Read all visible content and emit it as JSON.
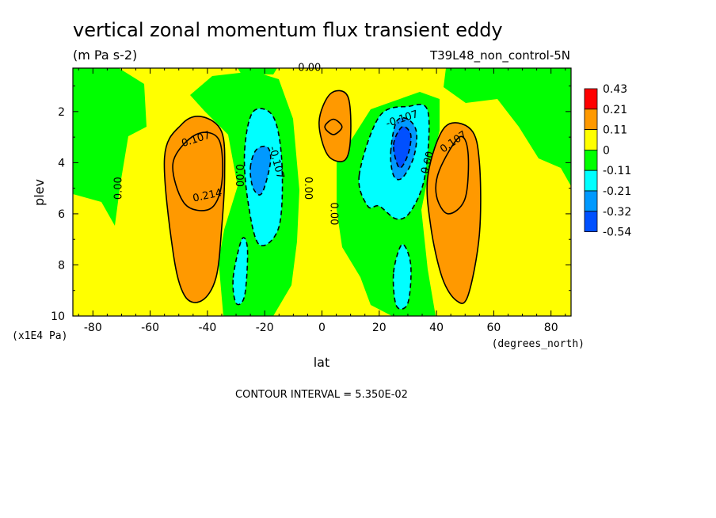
{
  "chart_data": {
    "type": "heatmap",
    "title": "vertical zonal momentum flux transient eddy",
    "units": "(m Pa s-2)",
    "dataset": "T39L48_non_control-5N",
    "xlabel": "lat",
    "xunits": "(degrees_north)",
    "ylabel": "plev",
    "yunits": "(x1E4 Pa)",
    "xlim": [
      -87,
      87
    ],
    "ylim": [
      10,
      0.3
    ],
    "x_ticks": [
      "-80",
      "-60",
      "-40",
      "-20",
      "0",
      "20",
      "40",
      "60",
      "80"
    ],
    "x_tick_values": [
      -80,
      -60,
      -40,
      -20,
      0,
      20,
      40,
      60,
      80
    ],
    "y_ticks": [
      "2",
      "4",
      "6",
      "8",
      "10"
    ],
    "y_tick_values": [
      2,
      4,
      6,
      8,
      10
    ],
    "contour_interval_text": "CONTOUR INTERVAL = 5.350E-02",
    "colorbar": {
      "labels": [
        "0.43",
        "0.21",
        "0.11",
        "0",
        "-0.11",
        "-0.21",
        "-0.32",
        "-0.54"
      ],
      "colors": [
        "#ff0000",
        "#ff9900",
        "#ffff00",
        "#00ff00",
        "#00ffff",
        "#0099ff",
        "#0050ff"
      ]
    },
    "contour_labels": [
      {
        "text": "0.00",
        "lat": -71,
        "plev": 5.0,
        "angle": -90
      },
      {
        "text": "0.107",
        "lat": -44,
        "plev": 3.1,
        "angle": -18
      },
      {
        "text": "0.214",
        "lat": -40,
        "plev": 5.3,
        "angle": -12
      },
      {
        "text": "0.00",
        "lat": -29,
        "plev": 4.5,
        "angle": 90
      },
      {
        "text": "-0.107",
        "lat": -16,
        "plev": 4.0,
        "angle": 75
      },
      {
        "text": "0.00",
        "lat": -5,
        "plev": 5.0,
        "angle": 90
      },
      {
        "text": "-0.00",
        "lat": -5,
        "plev": 0.3,
        "angle": 0
      },
      {
        "text": "0.00",
        "lat": 4,
        "plev": 6.0,
        "angle": 90
      },
      {
        "text": "-0.107",
        "lat": 28,
        "plev": 2.3,
        "angle": -18
      },
      {
        "text": "0.00",
        "lat": 37,
        "plev": 4.0,
        "angle": -75
      },
      {
        "text": "0.107",
        "lat": 46,
        "plev": 3.2,
        "angle": -35
      }
    ],
    "fields": [
      {
        "level": "0.43",
        "color": "#ff0000",
        "regions": [
          {
            "lat": [
              -52,
              -44,
              -36,
              -35,
              -39,
              -48,
              -52
            ],
            "plev": [
              4.0,
              2.9,
              3.1,
              4.8,
              5.8,
              5.6,
              4.0
            ]
          },
          {
            "lat": [
              41,
              48,
              51,
              50,
              44,
              40,
              41
            ],
            "plev": [
              4.3,
              3.0,
              3.6,
              5.4,
              6.0,
              5.3,
              4.3
            ]
          },
          {
            "lat": [
              4,
              7,
              4,
              1,
              4
            ],
            "plev": [
              2.3,
              2.6,
              2.9,
              2.6,
              2.3
            ]
          }
        ]
      },
      {
        "level": "0.21",
        "color": "#ff9900",
        "regions": [
          {
            "lat": [
              -55,
              -49,
              -42,
              -35,
              -34,
              -35,
              -37,
              -42,
              -48,
              -52,
              -55
            ],
            "plev": [
              3.8,
              2.5,
              2.2,
              2.8,
              4.5,
              6.5,
              8.5,
              9.4,
              9.2,
              7.5,
              3.8
            ]
          },
          {
            "lat": [
              37,
              43,
              52,
              55,
              55,
              51,
              47,
              42,
              38,
              37
            ],
            "plev": [
              4.5,
              2.6,
              2.7,
              4.0,
              6.8,
              9.2,
              9.4,
              8.5,
              6.5,
              4.5
            ]
          },
          {
            "lat": [
              -1,
              3,
              9,
              10,
              8,
              2,
              -1
            ],
            "plev": [
              2.4,
              1.3,
              1.4,
              3.0,
              3.9,
              3.7,
              2.4
            ]
          }
        ]
      },
      {
        "level": "-0.11",
        "color": "#00ffff",
        "regions": [
          {
            "lat": [
              -27,
              -24,
              -17,
              -14,
              -15,
              -22,
              -26,
              -27
            ],
            "plev": [
              3.5,
              2.0,
              2.2,
              4.0,
              6.5,
              7.2,
              5.4,
              3.5
            ]
          },
          {
            "lat": [
              -31,
              -28,
              -26,
              -27,
              -30,
              -31
            ],
            "plev": [
              8.5,
              7.0,
              7.4,
              9.2,
              9.5,
              8.5
            ]
          },
          {
            "lat": [
              13,
              20,
              30,
              37,
              36,
              31,
              26,
              20,
              16,
              13
            ],
            "plev": [
              4.5,
              2.2,
              1.8,
              2.0,
              4.5,
              5.9,
              6.2,
              5.7,
              5.7,
              4.5
            ]
          },
          {
            "lat": [
              25,
              28,
              31,
              30,
              26,
              25
            ],
            "plev": [
              8.3,
              7.2,
              8.0,
              9.5,
              9.6,
              8.3
            ]
          }
        ]
      },
      {
        "level": "-0.21",
        "color": "#0099ff",
        "regions": [
          {
            "lat": [
              -25,
              -23,
              -19,
              -18,
              -21,
              -24,
              -25
            ],
            "plev": [
              4.2,
              3.5,
              3.4,
              4.0,
              5.2,
              5.0,
              4.2
            ]
          },
          {
            "lat": [
              24,
              26,
              30,
              33,
              32,
              28,
              25,
              24
            ],
            "plev": [
              3.6,
              2.4,
              2.3,
              2.8,
              3.8,
              4.6,
              4.5,
              3.6
            ]
          }
        ]
      },
      {
        "level": "-0.32",
        "color": "#0050ff",
        "regions": [
          {
            "lat": [
              25,
              28,
              31,
              30,
              27,
              25
            ],
            "plev": [
              3.3,
              2.6,
              2.9,
              3.7,
              4.2,
              3.3
            ]
          }
        ]
      }
    ]
  }
}
